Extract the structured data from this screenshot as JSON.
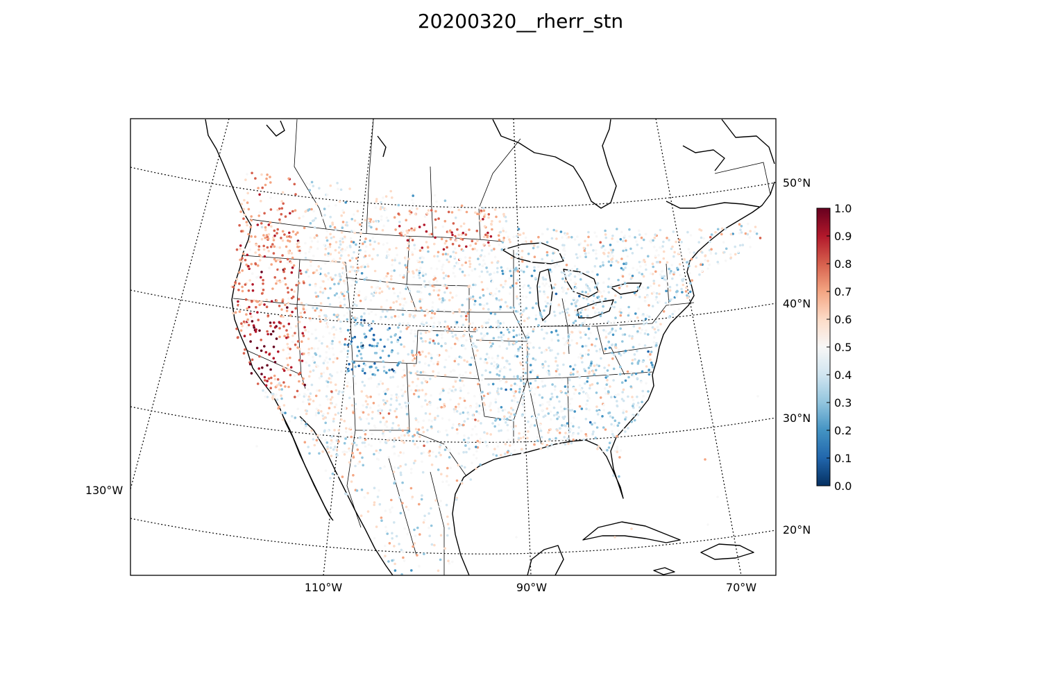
{
  "title": "20200320__rherr_stn",
  "map": {
    "projection": "lambert-conformal",
    "meridian_labels": [
      {
        "text": "130°W",
        "lon": -130
      },
      {
        "text": "110°W",
        "lon": -110
      },
      {
        "text": "90°W",
        "lon": -90
      },
      {
        "text": "70°W",
        "lon": -70
      }
    ],
    "parallel_labels": [
      {
        "text": "50°N",
        "lat": 50
      },
      {
        "text": "40°N",
        "lat": 40
      },
      {
        "text": "30°N",
        "lat": 30
      },
      {
        "text": "20°N",
        "lat": 20
      }
    ],
    "graticule_style": "dotted",
    "marker": "small filled circle (station)"
  },
  "colorbar": {
    "colormap": "RdBu_r",
    "vmin": 0.0,
    "vmax": 1.0,
    "ticks": [
      "0.0",
      "0.1",
      "0.2",
      "0.3",
      "0.4",
      "0.5",
      "0.6",
      "0.7",
      "0.8",
      "0.9",
      "1.0"
    ],
    "colors": [
      "#053061",
      "#2166ac",
      "#4393c3",
      "#92c5de",
      "#d1e5f0",
      "#f7f7f7",
      "#fddbc7",
      "#f4a582",
      "#d6604d",
      "#b2182b",
      "#67001f"
    ]
  }
}
